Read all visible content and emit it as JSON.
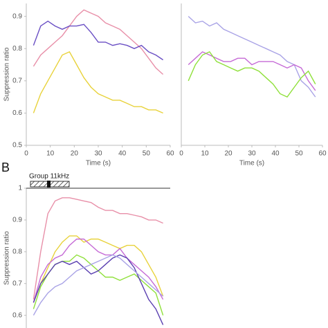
{
  "chart_data": [
    {
      "type": "line",
      "x_label": "Time (s)",
      "y_label": "Suppression ratio",
      "x": [
        3,
        6,
        9,
        12,
        15,
        18,
        21,
        24,
        27,
        30,
        33,
        36,
        39,
        42,
        45,
        48,
        51,
        54,
        57
      ],
      "xlim": [
        0,
        60
      ],
      "xticks": [
        0,
        10,
        20,
        30,
        40,
        50,
        60
      ],
      "ylim": [
        0.5,
        0.94
      ],
      "yticks": [
        0.5,
        0.6,
        0.7,
        0.8,
        0.9
      ],
      "series": [
        {
          "color": "#e88fa8",
          "values": [
            0.745,
            0.78,
            0.8,
            0.82,
            0.84,
            0.87,
            0.9,
            0.92,
            0.91,
            0.9,
            0.88,
            0.87,
            0.86,
            0.84,
            0.82,
            0.8,
            0.77,
            0.74,
            0.72
          ]
        },
        {
          "color": "#6a4fc4",
          "values": [
            0.81,
            0.87,
            0.885,
            0.87,
            0.86,
            0.87,
            0.87,
            0.875,
            0.85,
            0.82,
            0.82,
            0.81,
            0.815,
            0.81,
            0.8,
            0.81,
            0.79,
            0.78,
            0.765
          ]
        },
        {
          "color": "#e8d23a",
          "values": [
            0.6,
            0.66,
            0.7,
            0.74,
            0.78,
            0.79,
            0.75,
            0.71,
            0.68,
            0.66,
            0.65,
            0.64,
            0.64,
            0.63,
            0.62,
            0.62,
            0.61,
            0.61,
            0.6
          ]
        }
      ]
    },
    {
      "type": "line",
      "x_label": "Time (s)",
      "x": [
        3,
        6,
        9,
        12,
        15,
        18,
        21,
        24,
        27,
        30,
        33,
        36,
        39,
        42,
        45,
        48,
        51,
        54,
        57
      ],
      "xlim": [
        0,
        60
      ],
      "xticks": [
        0,
        10,
        20,
        30,
        40,
        50,
        60
      ],
      "ylim": [
        0.5,
        0.94
      ],
      "series": [
        {
          "color": "#a9a3e6",
          "values": [
            0.9,
            0.88,
            0.885,
            0.87,
            0.88,
            0.86,
            0.85,
            0.84,
            0.83,
            0.82,
            0.81,
            0.8,
            0.79,
            0.78,
            0.76,
            0.75,
            0.7,
            0.68,
            0.65
          ]
        },
        {
          "color": "#c56ad6",
          "values": [
            0.75,
            0.77,
            0.79,
            0.78,
            0.77,
            0.76,
            0.76,
            0.77,
            0.77,
            0.75,
            0.76,
            0.76,
            0.76,
            0.75,
            0.74,
            0.75,
            0.74,
            0.7,
            0.67
          ]
        },
        {
          "color": "#8fe03a",
          "values": [
            0.7,
            0.75,
            0.78,
            0.79,
            0.76,
            0.75,
            0.74,
            0.73,
            0.74,
            0.74,
            0.73,
            0.71,
            0.69,
            0.66,
            0.65,
            0.68,
            0.71,
            0.73,
            0.69
          ]
        }
      ]
    },
    {
      "type": "line",
      "panel_label": "B",
      "annotation": "Group 11kHz",
      "y_label": "Suppression ratio",
      "x": [
        3,
        6,
        9,
        12,
        15,
        18,
        21,
        24,
        27,
        30,
        33,
        36,
        39,
        42,
        45,
        48,
        51,
        54,
        57
      ],
      "xlim": [
        0,
        60
      ],
      "ylim": [
        0.56,
        1.0
      ],
      "yticks": [
        0.6,
        0.7,
        0.8,
        0.9,
        1
      ],
      "series": [
        {
          "color": "#e88fa8",
          "values": [
            0.65,
            0.8,
            0.92,
            0.96,
            0.97,
            0.97,
            0.965,
            0.96,
            0.955,
            0.94,
            0.93,
            0.93,
            0.92,
            0.92,
            0.915,
            0.91,
            0.9,
            0.9,
            0.89
          ]
        },
        {
          "color": "#e8d23a",
          "values": [
            0.64,
            0.7,
            0.75,
            0.8,
            0.83,
            0.85,
            0.85,
            0.83,
            0.84,
            0.84,
            0.83,
            0.82,
            0.81,
            0.82,
            0.82,
            0.8,
            0.76,
            0.72,
            0.66
          ]
        },
        {
          "color": "#c56ad6",
          "values": [
            0.64,
            0.72,
            0.76,
            0.78,
            0.79,
            0.82,
            0.84,
            0.84,
            0.82,
            0.8,
            0.79,
            0.79,
            0.81,
            0.78,
            0.76,
            0.74,
            0.72,
            0.69,
            0.65
          ]
        },
        {
          "color": "#8fe03a",
          "values": [
            0.62,
            0.69,
            0.73,
            0.76,
            0.77,
            0.77,
            0.79,
            0.78,
            0.76,
            0.74,
            0.72,
            0.72,
            0.71,
            0.72,
            0.73,
            0.71,
            0.69,
            0.67,
            0.6
          ]
        },
        {
          "color": "#5a3fb0",
          "values": [
            0.64,
            0.7,
            0.73,
            0.76,
            0.77,
            0.76,
            0.77,
            0.75,
            0.73,
            0.74,
            0.76,
            0.78,
            0.79,
            0.78,
            0.75,
            0.7,
            0.65,
            0.62,
            0.57
          ]
        },
        {
          "color": "#a9a3e6",
          "values": [
            0.6,
            0.64,
            0.67,
            0.69,
            0.7,
            0.72,
            0.74,
            0.75,
            0.76,
            0.77,
            0.78,
            0.79,
            0.78,
            0.76,
            0.74,
            0.72,
            0.7,
            0.68,
            0.66
          ]
        }
      ]
    }
  ]
}
